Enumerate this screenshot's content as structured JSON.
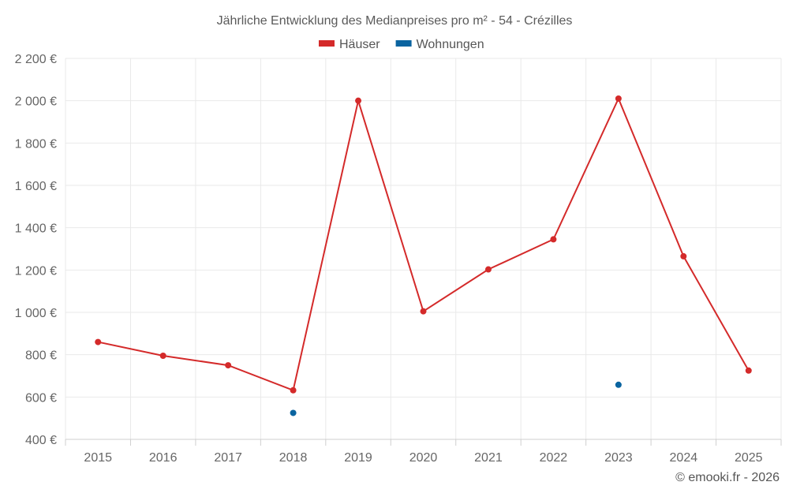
{
  "chart_data": {
    "type": "line",
    "title": "Jährliche Entwicklung des Medianpreises pro m² - 54 - Crézilles",
    "categories": [
      "2015",
      "2016",
      "2017",
      "2018",
      "2019",
      "2020",
      "2021",
      "2022",
      "2023",
      "2024",
      "2025"
    ],
    "series": [
      {
        "name": "Häuser",
        "color": "#d42a2a",
        "values": [
          860,
          795,
          750,
          632,
          2000,
          1005,
          1203,
          1345,
          2010,
          1265,
          725
        ]
      },
      {
        "name": "Wohnungen",
        "color": "#0a64a0",
        "values": [
          null,
          null,
          null,
          525,
          null,
          null,
          null,
          null,
          658,
          null,
          null
        ]
      }
    ],
    "ylim": [
      400,
      2200
    ],
    "yticks": [
      400,
      600,
      800,
      1000,
      1200,
      1400,
      1600,
      1800,
      2000,
      2200
    ],
    "ytick_labels": [
      "400 €",
      "600 €",
      "800 €",
      "1 000 €",
      "1 200 €",
      "1 400 €",
      "1 600 €",
      "1 800 €",
      "2 000 €",
      "2 200 €"
    ],
    "legend_position": "top-center",
    "grid": true
  },
  "credit": "© emooki.fr - 2026"
}
